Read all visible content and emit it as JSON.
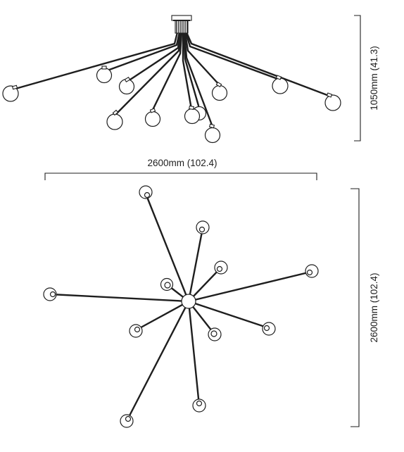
{
  "dimensions": {
    "height": "1050mm  (41.3)",
    "width": "2600mm (102.4)",
    "depth": "2600mm (102.4)"
  }
}
